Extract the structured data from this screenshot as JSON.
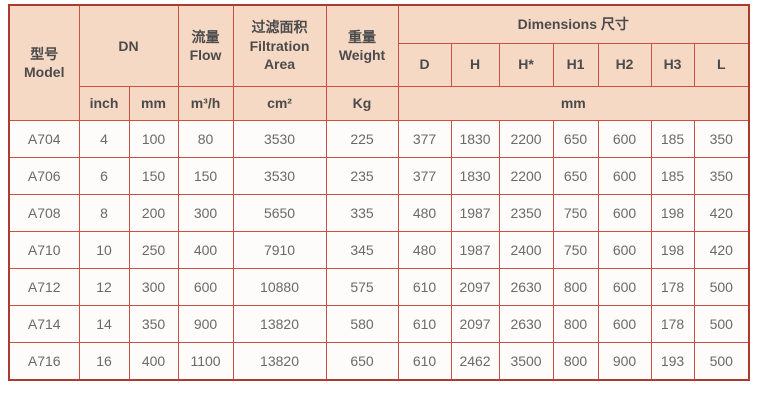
{
  "colors": {
    "header_bg": "#f6d9c5",
    "border_outer": "#a93b31",
    "border_inner": "#cc4f44",
    "header_text": "#4b4b4b",
    "cell_text": "#6a6a6a",
    "cell_bg": "#fdfcfb",
    "page_bg": "#ffffff"
  },
  "table": {
    "header": {
      "model": "型号\nModel",
      "dn": "DN",
      "flow": "流量\nFlow",
      "filtration_area": "过滤面积\nFiltration\nArea",
      "weight": "重量\nWeight",
      "dimensions": "Dimensions 尺寸",
      "dim_columns": [
        "D",
        "H",
        "H*",
        "H1",
        "H2",
        "H3",
        "L"
      ],
      "unit_inch": "inch",
      "unit_mm": "mm",
      "unit_flow": "m³/h",
      "unit_area": "cm²",
      "unit_weight": "Kg",
      "unit_dims": "mm"
    },
    "columns": [
      "Model",
      "DN inch",
      "DN mm",
      "Flow m³/h",
      "Filtration Area cm²",
      "Weight Kg",
      "D",
      "H",
      "H*",
      "H1",
      "H2",
      "H3",
      "L"
    ],
    "rows": [
      [
        "A704",
        "4",
        "100",
        "80",
        "3530",
        "225",
        "377",
        "1830",
        "2200",
        "650",
        "600",
        "185",
        "350"
      ],
      [
        "A706",
        "6",
        "150",
        "150",
        "3530",
        "235",
        "377",
        "1830",
        "2200",
        "650",
        "600",
        "185",
        "350"
      ],
      [
        "A708",
        "8",
        "200",
        "300",
        "5650",
        "335",
        "480",
        "1987",
        "2350",
        "750",
        "600",
        "198",
        "420"
      ],
      [
        "A710",
        "10",
        "250",
        "400",
        "7910",
        "345",
        "480",
        "1987",
        "2400",
        "750",
        "600",
        "198",
        "420"
      ],
      [
        "A712",
        "12",
        "300",
        "600",
        "10880",
        "575",
        "610",
        "2097",
        "2630",
        "800",
        "600",
        "178",
        "500"
      ],
      [
        "A714",
        "14",
        "350",
        "900",
        "13820",
        "580",
        "610",
        "2097",
        "2630",
        "800",
        "600",
        "178",
        "500"
      ],
      [
        "A716",
        "16",
        "400",
        "1100",
        "13820",
        "650",
        "610",
        "2462",
        "3500",
        "800",
        "900",
        "193",
        "500"
      ]
    ]
  }
}
